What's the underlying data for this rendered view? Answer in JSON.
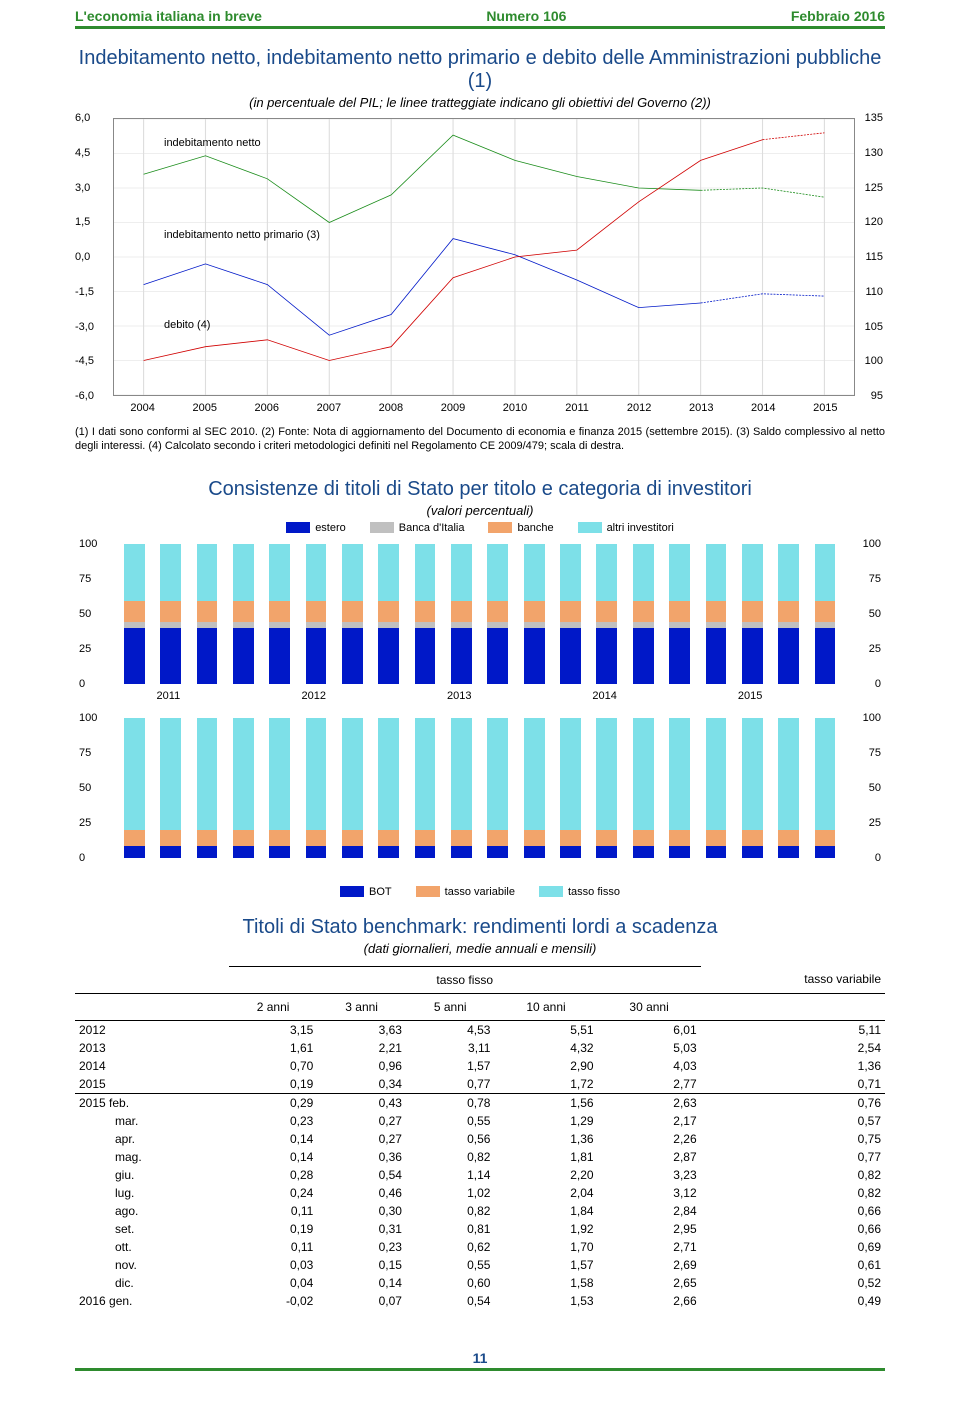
{
  "header": {
    "left": "L'economia italiana in breve",
    "center": "Numero 106",
    "right": "Febbraio 2016"
  },
  "chart1": {
    "title": "Indebitamento netto, indebitamento netto primario e debito delle Amministrazioni pubbliche (1)",
    "subtitle": "(in percentuale del PIL; le linee tratteggiate indicano gli obiettivi del Governo (2))",
    "years": [
      "2004",
      "2005",
      "2006",
      "2007",
      "2008",
      "2009",
      "2010",
      "2011",
      "2012",
      "2013",
      "2014",
      "2015"
    ],
    "left_ticks": [
      "6,0",
      "4,5",
      "3,0",
      "1,5",
      "0,0",
      "-1,5",
      "-3,0",
      "-4,5",
      "-6,0"
    ],
    "right_ticks": [
      "135",
      "130",
      "125",
      "120",
      "115",
      "110",
      "105",
      "100",
      "95"
    ],
    "labels": {
      "netto": "indebitamento netto",
      "primario": "indebitamento netto primario (3)",
      "debito": "debito (4)"
    },
    "series": {
      "netto": {
        "color": "#1a8c1a",
        "values": [
          3.6,
          4.4,
          3.4,
          1.5,
          2.7,
          5.3,
          4.2,
          3.5,
          3.0,
          2.9,
          3.0,
          2.6
        ],
        "dash_last": 2
      },
      "primario": {
        "color": "#0018c8",
        "values": [
          -1.2,
          -0.3,
          -1.2,
          -3.4,
          -2.5,
          0.8,
          0.1,
          -1.0,
          -2.2,
          -2.0,
          -1.6,
          -1.7
        ],
        "dash_last": 2
      },
      "debito": {
        "color": "#d00000",
        "right_axis": true,
        "values": [
          100,
          102,
          103,
          100,
          102,
          112,
          115,
          116,
          123,
          129,
          132,
          133
        ],
        "dash_last": 1
      }
    },
    "left_min": -6,
    "left_max": 6,
    "right_min": 95,
    "right_max": 135,
    "footnote": "(1) I dati sono conformi al SEC 2010. (2) Fonte: Nota di aggiornamento del Documento di economia e finanza 2015 (settembre 2015). (3) Saldo complessivo al netto degli interessi. (4) Calcolato secondo i criteri metodologici definiti nel Regolamento CE 2009/479; scala di destra."
  },
  "chart2": {
    "title": "Consistenze di titoli di Stato per titolo e categoria di investitori",
    "subtitle": "(valori percentuali)",
    "top_legend": [
      {
        "label": "estero",
        "color": "#0018c8"
      },
      {
        "label": "Banca d'Italia",
        "color": "#c0c0c0"
      },
      {
        "label": "banche",
        "color": "#f2a46b"
      },
      {
        "label": "altri investitori",
        "color": "#7de0e8"
      }
    ],
    "bottom_legend": [
      {
        "label": "BOT",
        "color": "#0018c8"
      },
      {
        "label": "tasso variabile",
        "color": "#f2a46b"
      },
      {
        "label": "tasso fisso",
        "color": "#7de0e8"
      }
    ],
    "y_ticks": [
      "100",
      "75",
      "50",
      "25",
      "0"
    ],
    "x_years": [
      "2011",
      "2012",
      "2013",
      "2014",
      "2015"
    ],
    "top_series": {
      "estero": 40,
      "bdi": 4,
      "banche": 15,
      "altri": 41
    },
    "bottom_series": {
      "bot": 8,
      "variabile": 12,
      "fisso": 80
    }
  },
  "table": {
    "title": "Titoli di Stato benchmark: rendimenti lordi a scadenza",
    "subtitle": "(dati giornalieri, medie annuali e mensili)",
    "group_fisso": "tasso fisso",
    "group_var": "tasso variabile",
    "cols": [
      "",
      "2 anni",
      "3 anni",
      "5 anni",
      "10 anni",
      "30 anni",
      ""
    ],
    "rows_top": [
      [
        "2012",
        "3,15",
        "3,63",
        "4,53",
        "5,51",
        "6,01",
        "5,11"
      ],
      [
        "2013",
        "1,61",
        "2,21",
        "3,11",
        "4,32",
        "5,03",
        "2,54"
      ],
      [
        "2014",
        "0,70",
        "0,96",
        "1,57",
        "2,90",
        "4,03",
        "1,36"
      ],
      [
        "2015",
        "0,19",
        "0,34",
        "0,77",
        "1,72",
        "2,77",
        "0,71"
      ]
    ],
    "rows_bottom": [
      [
        "2015 feb.",
        "0,29",
        "0,43",
        "0,78",
        "1,56",
        "2,63",
        "0,76"
      ],
      [
        "mar.",
        "0,23",
        "0,27",
        "0,55",
        "1,29",
        "2,17",
        "0,57"
      ],
      [
        "apr.",
        "0,14",
        "0,27",
        "0,56",
        "1,36",
        "2,26",
        "0,75"
      ],
      [
        "mag.",
        "0,14",
        "0,36",
        "0,82",
        "1,81",
        "2,87",
        "0,77"
      ],
      [
        "giu.",
        "0,28",
        "0,54",
        "1,14",
        "2,20",
        "3,23",
        "0,82"
      ],
      [
        "lug.",
        "0,24",
        "0,46",
        "1,02",
        "2,04",
        "3,12",
        "0,82"
      ],
      [
        "ago.",
        "0,11",
        "0,30",
        "0,82",
        "1,84",
        "2,84",
        "0,66"
      ],
      [
        "set.",
        "0,19",
        "0,31",
        "0,81",
        "1,92",
        "2,95",
        "0,66"
      ],
      [
        "ott.",
        "0,11",
        "0,23",
        "0,62",
        "1,70",
        "2,71",
        "0,69"
      ],
      [
        "nov.",
        "0,03",
        "0,15",
        "0,55",
        "1,57",
        "2,69",
        "0,61"
      ],
      [
        "dic.",
        "0,04",
        "0,14",
        "0,60",
        "1,58",
        "2,65",
        "0,52"
      ],
      [
        "2016 gen.",
        "-0,02",
        "0,07",
        "0,54",
        "1,53",
        "2,66",
        "0,49"
      ]
    ]
  },
  "page_number": "11"
}
